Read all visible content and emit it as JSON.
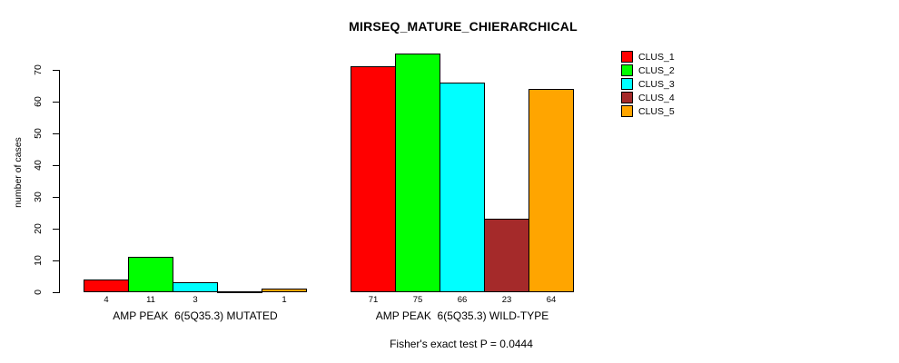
{
  "chart_data": {
    "type": "bar",
    "title": "MIRSEQ_MATURE_CHIERARCHICAL",
    "ylabel": "number of cases",
    "ylim": [
      0,
      70
    ],
    "yticks": [
      0,
      10,
      20,
      30,
      40,
      50,
      60,
      70
    ],
    "grid": false,
    "legend_position": "top-right-outside",
    "categories": [
      "AMP PEAK  6(5Q35.3) MUTATED",
      "AMP PEAK  6(5Q35.3) WILD-TYPE"
    ],
    "series": [
      {
        "name": "CLUS_1",
        "color": "#FF0000",
        "values": [
          4,
          71
        ]
      },
      {
        "name": "CLUS_2",
        "color": "#00FF00",
        "values": [
          11,
          75
        ]
      },
      {
        "name": "CLUS_3",
        "color": "#00FFFF",
        "values": [
          3,
          66
        ]
      },
      {
        "name": "CLUS_4",
        "color": "#A52A2A",
        "values": [
          0,
          23
        ]
      },
      {
        "name": "CLUS_5",
        "color": "#FFA500",
        "values": [
          1,
          64
        ]
      }
    ],
    "groups": [
      {
        "label": "AMP PEAK  6(5Q35.3) MUTATED",
        "values": [
          4,
          11,
          3,
          0,
          1
        ],
        "value_labels": [
          "4",
          "11",
          "3",
          "",
          "1"
        ]
      },
      {
        "label": "AMP PEAK  6(5Q35.3) WILD-TYPE",
        "values": [
          71,
          75,
          66,
          23,
          64
        ],
        "value_labels": [
          "71",
          "75",
          "66",
          "23",
          "64"
        ]
      }
    ],
    "annotation": "Fisher's exact test P = 0.0444"
  }
}
